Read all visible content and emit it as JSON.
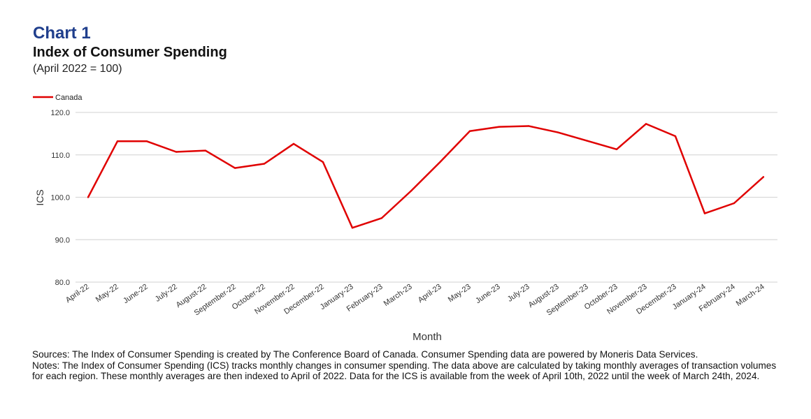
{
  "header": {
    "chart_number": "Chart 1",
    "title": "Index of Consumer Spending",
    "subtitle": "(April 2022 = 100)"
  },
  "chart_data": {
    "type": "line",
    "categories": [
      "April-22",
      "May-22",
      "June-22",
      "July-22",
      "August-22",
      "September-22",
      "October-22",
      "November-22",
      "December-22",
      "January-23",
      "February-23",
      "March-23",
      "April-23",
      "May-23",
      "June-23",
      "July-23",
      "August-23",
      "September-23",
      "October-23",
      "November-23",
      "December-23",
      "January-24",
      "February-24",
      "March-24"
    ],
    "series": [
      {
        "name": "Canada",
        "color": "#e00000",
        "values": [
          100.0,
          113.2,
          113.2,
          110.7,
          111.0,
          106.9,
          107.9,
          112.6,
          108.3,
          92.8,
          95.1,
          101.5,
          108.4,
          115.6,
          116.6,
          116.8,
          115.3,
          113.3,
          111.3,
          117.3,
          114.4,
          96.2,
          98.6,
          104.8
        ]
      }
    ],
    "xlabel": "Month",
    "ylabel": "ICS",
    "ylim": [
      80,
      120
    ],
    "yticks": [
      "80.0",
      "90.0",
      "100.0",
      "110.0",
      "120.0"
    ],
    "grid": true,
    "legend": "top-left"
  },
  "footer": {
    "sources": "Sources: The Index of Consumer Spending is created by The Conference Board of Canada. Consumer Spending data are powered by Moneris Data Services.",
    "notes": "Notes: The Index of Consumer Spending (ICS) tracks monthly changes in consumer spending. The data above are calculated by taking monthly averages of transaction volumes for each region. These monthly averages are then indexed to April of 2022. Data for the ICS is available from the week of April 10th, 2022 until the week of March 24th, 2024."
  }
}
